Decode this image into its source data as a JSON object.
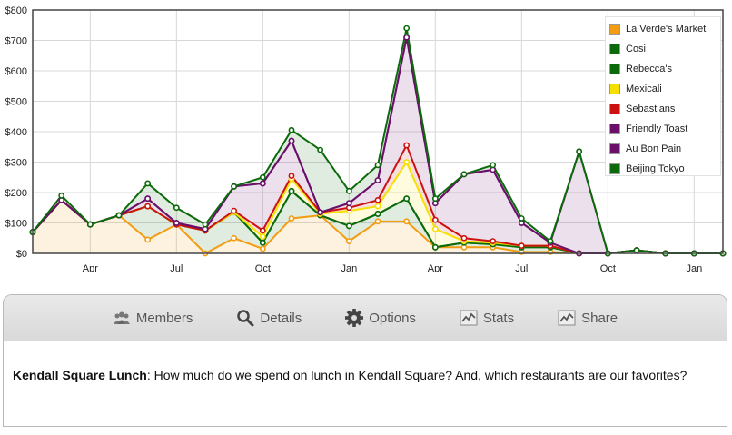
{
  "chart_data": {
    "type": "area",
    "stacked": true,
    "x_ticks": [
      "Apr",
      "Jul",
      "Oct",
      "Jan",
      "Apr",
      "Jul",
      "Oct",
      "Jan"
    ],
    "y_ticks": [
      "$0",
      "$100",
      "$200",
      "$300",
      "$400",
      "$500",
      "$600",
      "$700",
      "$800"
    ],
    "ylim": [
      0,
      800
    ],
    "grid": true,
    "legend_position": "top-right",
    "x": [
      "2011-02",
      "2011-03",
      "2011-04",
      "2011-05",
      "2011-06",
      "2011-07",
      "2011-08",
      "2011-09",
      "2011-10",
      "2011-11",
      "2011-12",
      "2012-01",
      "2012-02",
      "2012-03",
      "2012-04",
      "2012-05",
      "2012-06",
      "2012-07",
      "2012-08",
      "2012-09",
      "2012-10",
      "2012-11",
      "2012-12",
      "2013-01",
      "2013-02"
    ],
    "series": [
      {
        "name": "La Verde's Market",
        "color": "#f39c12",
        "totals": [
          70,
          175,
          95,
          125,
          45,
          95,
          0,
          50,
          15,
          115,
          125,
          40,
          105,
          105,
          20,
          20,
          20,
          5,
          5,
          0,
          0,
          10,
          0,
          0,
          0
        ]
      },
      {
        "name": "Cosi",
        "color": "#0b6b0b",
        "totals": [
          70,
          175,
          95,
          125,
          155,
          95,
          75,
          135,
          35,
          205,
          125,
          90,
          130,
          180,
          20,
          35,
          30,
          20,
          20,
          0,
          0,
          10,
          0,
          0,
          0
        ]
      },
      {
        "name": "Rebecca's",
        "color": "#0b6b0b",
        "totals": [
          70,
          175,
          95,
          125,
          155,
          95,
          75,
          135,
          35,
          205,
          125,
          90,
          130,
          180,
          20,
          35,
          30,
          20,
          20,
          0,
          0,
          10,
          0,
          0,
          0
        ]
      },
      {
        "name": "Mexicali",
        "color": "#f5e000",
        "totals": [
          70,
          175,
          95,
          125,
          155,
          95,
          75,
          135,
          55,
          245,
          130,
          140,
          155,
          300,
          80,
          40,
          35,
          25,
          25,
          0,
          0,
          10,
          0,
          0,
          0
        ]
      },
      {
        "name": "Sebastians",
        "color": "#cc1111",
        "totals": [
          70,
          175,
          95,
          125,
          155,
          95,
          75,
          140,
          75,
          255,
          135,
          150,
          175,
          355,
          110,
          50,
          40,
          25,
          25,
          0,
          0,
          10,
          0,
          0,
          0
        ]
      },
      {
        "name": "Friendly Toast",
        "color": "#6a0f6a",
        "totals": [
          70,
          175,
          95,
          125,
          180,
          100,
          80,
          220,
          230,
          370,
          135,
          165,
          240,
          710,
          165,
          260,
          275,
          100,
          35,
          0,
          0,
          10,
          0,
          0,
          0
        ]
      },
      {
        "name": "Au Bon Pain",
        "color": "#6a0f6a",
        "totals": [
          70,
          175,
          95,
          125,
          180,
          100,
          80,
          220,
          230,
          370,
          135,
          165,
          240,
          710,
          165,
          260,
          275,
          100,
          35,
          335,
          0,
          10,
          0,
          0,
          0
        ]
      },
      {
        "name": "Beijing Tokyo",
        "color": "#0b6b0b",
        "totals": [
          70,
          190,
          95,
          125,
          230,
          150,
          95,
          220,
          250,
          405,
          340,
          205,
          290,
          740,
          180,
          260,
          290,
          115,
          40,
          335,
          0,
          10,
          0,
          0,
          0
        ]
      }
    ]
  },
  "tabs": [
    {
      "label": "Members",
      "icon": "members-icon"
    },
    {
      "label": "Details",
      "icon": "search-icon"
    },
    {
      "label": "Options",
      "icon": "gear-icon"
    },
    {
      "label": "Stats",
      "icon": "stats-icon"
    },
    {
      "label": "Share",
      "icon": "share-icon"
    }
  ],
  "description": {
    "title": "Kendall Square Lunch",
    "text": ": How much do we spend on lunch in Kendall Square? And, which restaurants are our favorites?"
  }
}
